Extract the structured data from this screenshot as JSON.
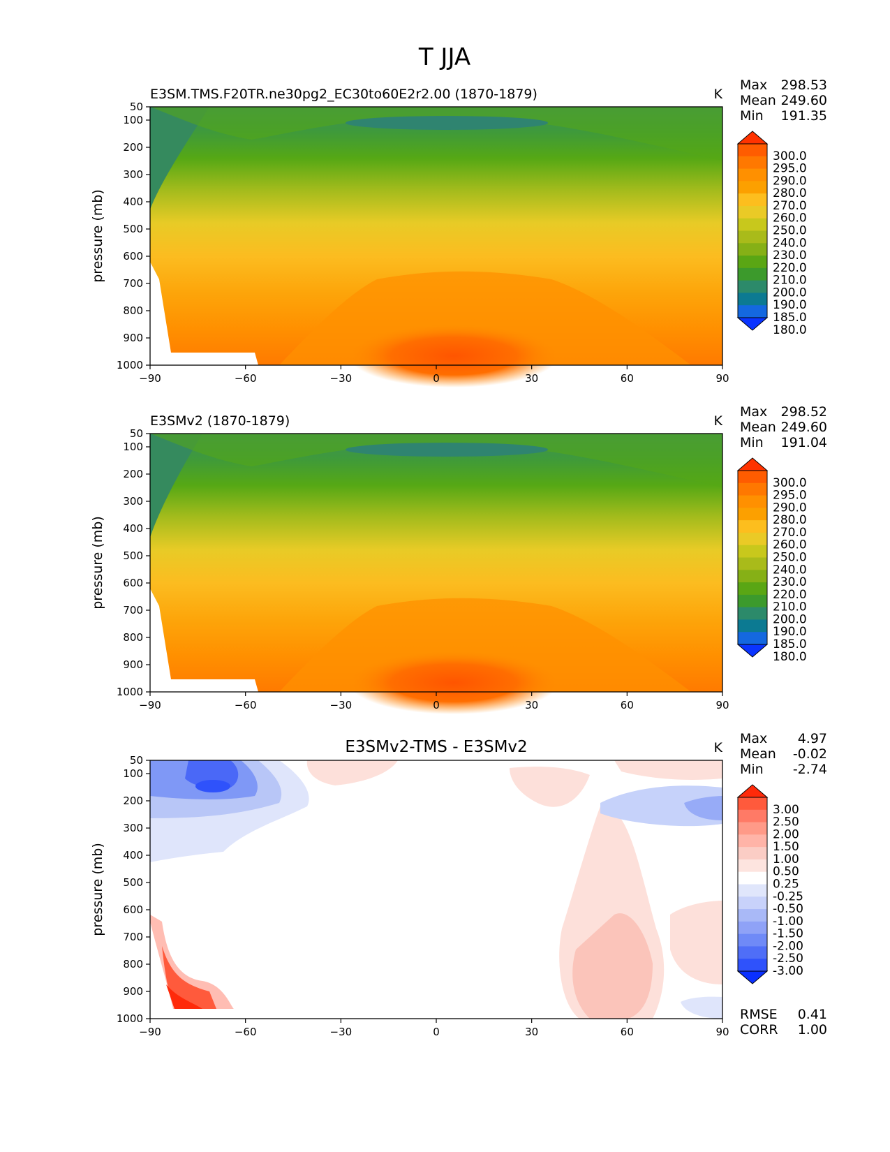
{
  "figure": {
    "title": "T JJA"
  },
  "chart_data": [
    {
      "type": "contour",
      "title": "E3SM.TMS.F20TR.ne30pg2_EC30to60E2r2.00 (1870-1879)",
      "title_align": "left",
      "units": "K",
      "ylabel": "pressure (mb)",
      "xticks": [
        "−90",
        "−60",
        "−30",
        "0",
        "30",
        "60",
        "90"
      ],
      "yticks": [
        "50",
        "100",
        "200",
        "300",
        "400",
        "500",
        "600",
        "700",
        "800",
        "900",
        "1000"
      ],
      "xlim": [
        -90,
        90
      ],
      "ylim": [
        1000,
        50
      ],
      "stats": [
        {
          "label": "Max",
          "value": "298.53"
        },
        {
          "label": "Mean",
          "value": "249.60"
        },
        {
          "label": "Min",
          "value": "191.35"
        }
      ],
      "extra_stats": [],
      "colorbar": {
        "labels": [
          "300.0",
          "295.0",
          "290.0",
          "280.0",
          "270.0",
          "260.0",
          "250.0",
          "240.0",
          "230.0",
          "220.0",
          "210.0",
          "200.0",
          "190.0",
          "185.0",
          "180.0"
        ],
        "colors": [
          "#ff3300",
          "#ff5c00",
          "#ff7800",
          "#ff9000",
          "#fca000",
          "#fdbe1e",
          "#eaca26",
          "#c8c81c",
          "#a9bb1a",
          "#86b016",
          "#5aa614",
          "#3c9a2c",
          "#2c8a6a",
          "#0c7a92",
          "#1468e0",
          "#0a34ff"
        ]
      }
    },
    {
      "type": "contour",
      "title": "E3SMv2 (1870-1879)",
      "title_align": "left",
      "units": "K",
      "ylabel": "pressure (mb)",
      "xticks": [
        "−90",
        "−60",
        "−30",
        "0",
        "30",
        "60",
        "90"
      ],
      "yticks": [
        "50",
        "100",
        "200",
        "300",
        "400",
        "500",
        "600",
        "700",
        "800",
        "900",
        "1000"
      ],
      "xlim": [
        -90,
        90
      ],
      "ylim": [
        1000,
        50
      ],
      "stats": [
        {
          "label": "Max",
          "value": "298.52"
        },
        {
          "label": "Mean",
          "value": "249.60"
        },
        {
          "label": "Min",
          "value": "191.04"
        }
      ],
      "extra_stats": [],
      "colorbar": {
        "labels": [
          "300.0",
          "295.0",
          "290.0",
          "280.0",
          "270.0",
          "260.0",
          "250.0",
          "240.0",
          "230.0",
          "220.0",
          "210.0",
          "200.0",
          "190.0",
          "185.0",
          "180.0"
        ],
        "colors": [
          "#ff3300",
          "#ff5c00",
          "#ff7800",
          "#ff9000",
          "#fca000",
          "#fdbe1e",
          "#eaca26",
          "#c8c81c",
          "#a9bb1a",
          "#86b016",
          "#5aa614",
          "#3c9a2c",
          "#2c8a6a",
          "#0c7a92",
          "#1468e0",
          "#0a34ff"
        ]
      }
    },
    {
      "type": "contour",
      "title": "E3SMv2-TMS - E3SMv2",
      "title_align": "center",
      "units": "K",
      "ylabel": "pressure (mb)",
      "xticks": [
        "−90",
        "−60",
        "−30",
        "0",
        "30",
        "60",
        "90"
      ],
      "yticks": [
        "50",
        "100",
        "200",
        "300",
        "400",
        "500",
        "600",
        "700",
        "800",
        "900",
        "1000"
      ],
      "xlim": [
        -90,
        90
      ],
      "ylim": [
        1000,
        50
      ],
      "stats": [
        {
          "label": "Max",
          "value": "4.97"
        },
        {
          "label": "Mean",
          "value": "-0.02"
        },
        {
          "label": "Min",
          "value": "-2.74"
        }
      ],
      "extra_stats": [
        {
          "label": "RMSE",
          "value": "0.41"
        },
        {
          "label": "CORR",
          "value": "1.00"
        }
      ],
      "colorbar": {
        "labels": [
          "3.00",
          "2.50",
          "2.00",
          "1.50",
          "1.00",
          "0.50",
          "0.25",
          "-0.25",
          "-0.50",
          "-1.00",
          "-1.50",
          "-2.00",
          "-2.50",
          "-3.00"
        ],
        "colors": [
          "#ff2a0a",
          "#ff5a3c",
          "#ff7a66",
          "#ff9a88",
          "#ffb4a8",
          "#fbcdc5",
          "#fde4df",
          "#ffffff",
          "#e0e6fb",
          "#c8d2fa",
          "#a9b9f7",
          "#8fa2f7",
          "#6f8af7",
          "#4f6ef7",
          "#2f52fb",
          "#0a30ff"
        ]
      }
    }
  ]
}
